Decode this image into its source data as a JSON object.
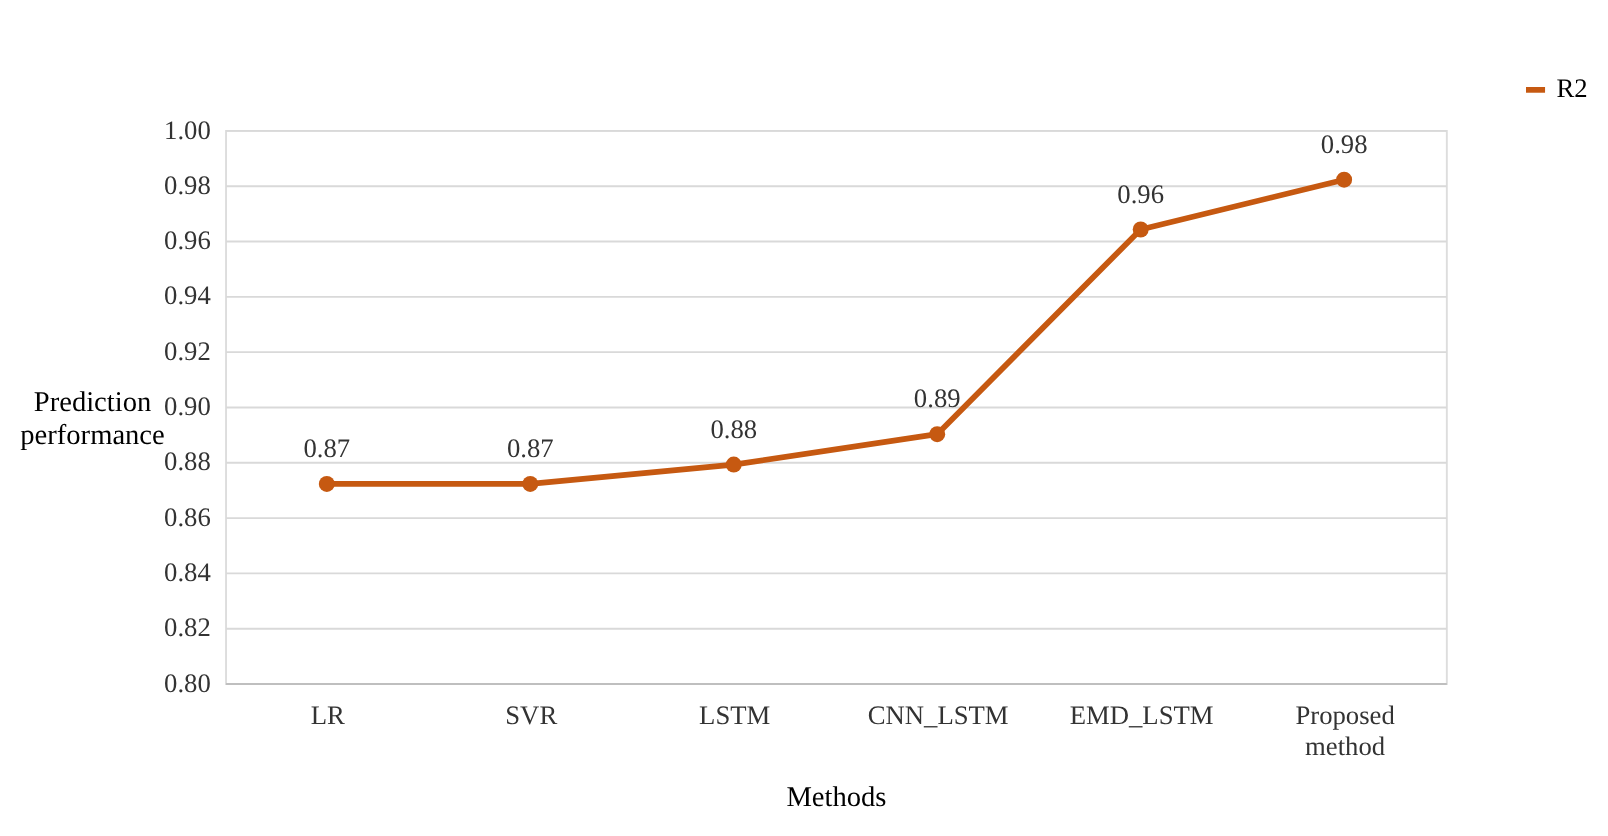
{
  "chart_data": {
    "type": "line",
    "xlabel": "Methods",
    "ylabel": "Prediction performance",
    "categories": [
      "LR",
      "SVR",
      "LSTM",
      "CNN_LSTM",
      "EMD_LSTM",
      "Proposed method"
    ],
    "series": [
      {
        "name": "R2",
        "color": "#c65911",
        "values": [
          0.872,
          0.872,
          0.879,
          0.89,
          0.964,
          0.982
        ],
        "value_labels": [
          "0.87",
          "0.87",
          "0.88",
          "0.89",
          "0.96",
          "0.98"
        ]
      }
    ],
    "ylim": [
      0.8,
      1.0
    ],
    "yticks": [
      {
        "value": 0.8,
        "label": "0.80"
      },
      {
        "value": 0.82,
        "label": "0.82"
      },
      {
        "value": 0.84,
        "label": "0.84"
      },
      {
        "value": 0.86,
        "label": "0.86"
      },
      {
        "value": 0.88,
        "label": "0.88"
      },
      {
        "value": 0.9,
        "label": "0.90"
      },
      {
        "value": 0.92,
        "label": "0.92"
      },
      {
        "value": 0.94,
        "label": "0.94"
      },
      {
        "value": 0.96,
        "label": "0.96"
      },
      {
        "value": 0.98,
        "label": "0.98"
      },
      {
        "value": 1.0,
        "label": "1.00"
      }
    ],
    "grid": "y",
    "legend": "top right",
    "marker": "circle",
    "line_style": "solid"
  }
}
